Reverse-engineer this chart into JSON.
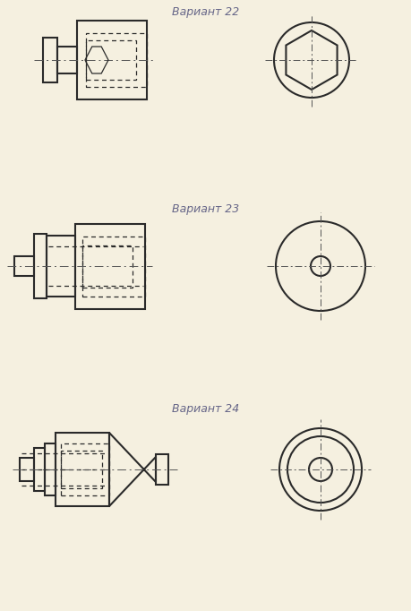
{
  "bg_color": "#f5f0e0",
  "line_color": "#2a2a2a",
  "dash_color": "#2a2a2a",
  "center_color": "#555555",
  "title_color": "#666688",
  "font_size_title": 9,
  "variants": [
    "Вариант 22",
    "Вариант 23",
    "Вариант 24"
  ]
}
